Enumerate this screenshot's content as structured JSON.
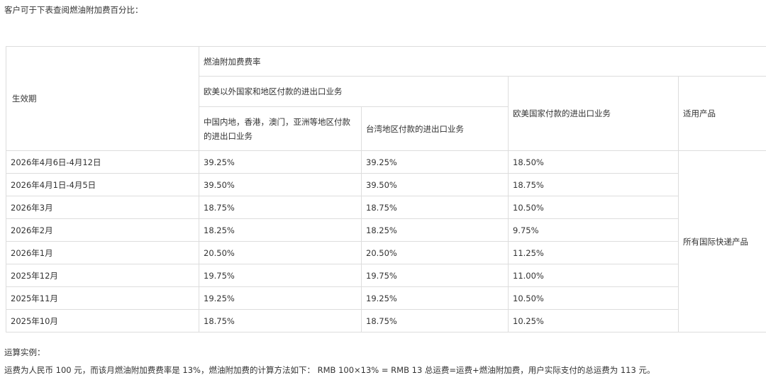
{
  "intro": "客户可于下表查阅燃油附加费百分比：",
  "table": {
    "header": {
      "period": "生效期",
      "fuel_rate": "燃油附加费费率",
      "non_euam": "欧美以外国家和地区付款的进出口业务",
      "china_asia": "中国内地，香港，澳门，亚洲等地区付款的进出口业务",
      "taiwan": "台湾地区付款的进出口业务",
      "euam": "欧美国家付款的进出口业务",
      "products": "适用产品"
    },
    "products_value": "所有国际快递产品",
    "rows": [
      [
        "2026年4月6日-4月12日",
        "39.25%",
        "39.25%",
        "18.50%"
      ],
      [
        "2026年4月1日-4月5日",
        "39.50%",
        "39.50%",
        "18.75%"
      ],
      [
        "2026年3月",
        "18.75%",
        "18.75%",
        "10.50%"
      ],
      [
        "2026年2月",
        "18.25%",
        "18.25%",
        "9.75%"
      ],
      [
        "2026年1月",
        "20.50%",
        "20.50%",
        "11.25%"
      ],
      [
        "2025年12月",
        "19.75%",
        "19.75%",
        "11.00%"
      ],
      [
        "2025年11月",
        "19.25%",
        "19.25%",
        "10.50%"
      ],
      [
        "2025年10月",
        "18.75%",
        "18.75%",
        "10.25%"
      ]
    ]
  },
  "example": {
    "title": "运算实例：",
    "text": "运费为人民币 100 元，而该月燃油附加费费率是 13%，燃油附加费的计算方法如下： RMB 100×13% = RMB 13   总运费=运费+燃油附加费，用户实际支付的总运费为 113 元。"
  }
}
